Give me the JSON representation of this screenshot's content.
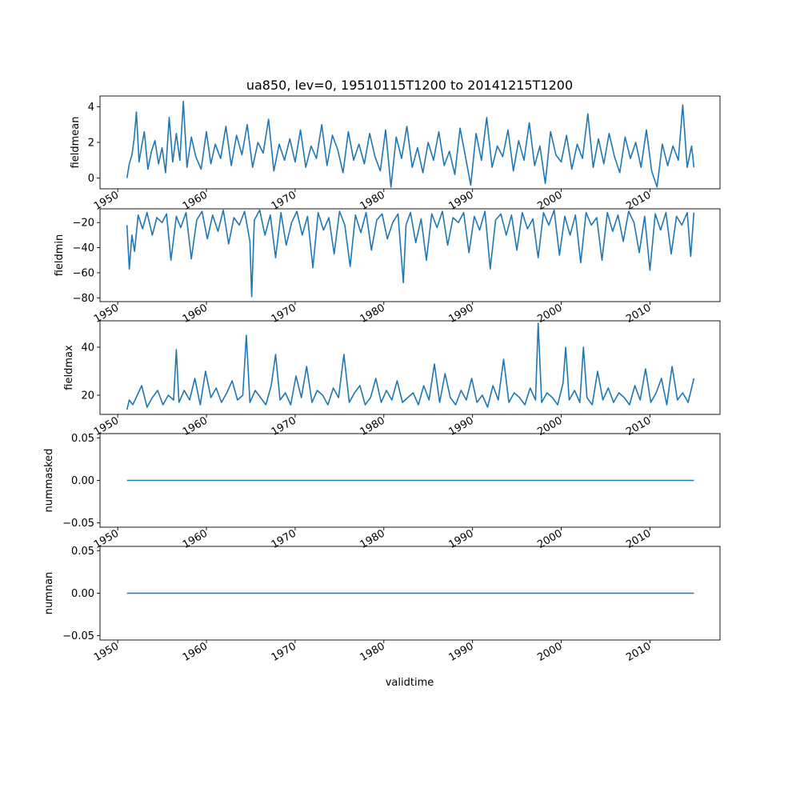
{
  "figure": {
    "title": "ua850, lev=0, 19510115T1200 to 20141215T1200",
    "xlabel": "validtime",
    "line_color": "#1f77b4"
  },
  "chart_data": [
    {
      "type": "line",
      "ylabel": "fieldmean",
      "xlim": [
        1948.0,
        2017.9
      ],
      "ylim": [
        -0.6,
        4.6
      ],
      "xticks": [
        1950,
        1960,
        1970,
        1980,
        1990,
        2000,
        2010
      ],
      "xtick_labels": [
        "1950",
        "1960",
        "1970",
        "1980",
        "1990",
        "2000",
        "2010"
      ],
      "yticks": [
        0,
        2,
        4
      ],
      "ytick_labels": [
        "0",
        "2",
        "4"
      ],
      "x": [
        1951.04,
        1951.3,
        1951.6,
        1951.85,
        1952.1,
        1952.4,
        1952.7,
        1953.0,
        1953.4,
        1953.8,
        1954.2,
        1954.6,
        1955.0,
        1955.4,
        1955.8,
        1956.2,
        1956.6,
        1957.0,
        1957.4,
        1957.8,
        1958.3,
        1958.8,
        1959.4,
        1960.0,
        1960.5,
        1961.0,
        1961.6,
        1962.2,
        1962.8,
        1963.4,
        1964.0,
        1964.6,
        1965.2,
        1965.8,
        1966.4,
        1967.0,
        1967.6,
        1968.2,
        1968.8,
        1969.4,
        1970.0,
        1970.6,
        1971.2,
        1971.8,
        1972.4,
        1973.0,
        1973.6,
        1974.2,
        1974.8,
        1975.4,
        1976.0,
        1976.6,
        1977.2,
        1977.8,
        1978.4,
        1979.0,
        1979.6,
        1980.2,
        1980.8,
        1981.4,
        1982.0,
        1982.6,
        1983.2,
        1983.8,
        1984.4,
        1985.0,
        1985.6,
        1986.2,
        1986.8,
        1987.4,
        1988.0,
        1988.6,
        1989.2,
        1989.8,
        1990.4,
        1991.0,
        1991.6,
        1992.2,
        1992.8,
        1993.4,
        1994.0,
        1994.6,
        1995.2,
        1995.8,
        1996.4,
        1997.0,
        1997.6,
        1998.2,
        1998.8,
        1999.4,
        2000.0,
        2000.6,
        2001.2,
        2001.8,
        2002.4,
        2003.0,
        2003.6,
        2004.2,
        2004.8,
        2005.4,
        2006.0,
        2006.6,
        2007.2,
        2007.8,
        2008.4,
        2009.0,
        2009.6,
        2010.2,
        2010.8,
        2011.4,
        2012.0,
        2012.6,
        2013.2,
        2013.7,
        2014.2,
        2014.7,
        2014.96
      ],
      "y": [
        0.0,
        0.8,
        1.3,
        2.2,
        3.7,
        0.9,
        1.8,
        2.6,
        0.5,
        1.5,
        2.1,
        0.8,
        1.7,
        0.3,
        3.4,
        0.9,
        2.5,
        1.0,
        4.3,
        0.6,
        2.3,
        1.2,
        0.5,
        2.6,
        0.8,
        1.9,
        1.1,
        2.9,
        0.7,
        2.4,
        1.3,
        3.0,
        0.6,
        2.0,
        1.4,
        3.3,
        0.4,
        1.9,
        1.0,
        2.2,
        0.9,
        2.7,
        0.6,
        1.8,
        1.1,
        3.0,
        0.7,
        2.4,
        1.6,
        0.3,
        2.6,
        1.0,
        1.9,
        0.8,
        2.5,
        1.2,
        0.4,
        2.7,
        -0.5,
        2.3,
        1.1,
        2.9,
        0.6,
        1.7,
        0.3,
        2.0,
        1.0,
        2.6,
        0.7,
        1.5,
        0.2,
        2.8,
        1.2,
        -0.4,
        2.5,
        1.0,
        3.4,
        0.6,
        1.8,
        1.2,
        2.7,
        0.4,
        2.1,
        1.0,
        3.1,
        0.7,
        1.8,
        -0.3,
        2.6,
        1.3,
        0.9,
        2.4,
        0.5,
        1.9,
        1.1,
        3.6,
        0.6,
        2.2,
        0.8,
        2.5,
        1.2,
        0.3,
        2.3,
        1.1,
        2.0,
        0.6,
        2.7,
        0.4,
        -0.5,
        1.9,
        0.7,
        1.8,
        1.0,
        4.1,
        0.6,
        1.8,
        0.6
      ]
    },
    {
      "type": "line",
      "ylabel": "fieldmin",
      "xlim": [
        1948.0,
        2017.9
      ],
      "ylim": [
        -83,
        -9
      ],
      "xticks": [
        1950,
        1960,
        1970,
        1980,
        1990,
        2000,
        2010
      ],
      "xtick_labels": [
        "1950",
        "1960",
        "1970",
        "1980",
        "1990",
        "2000",
        "2010"
      ],
      "yticks": [
        -80,
        -60,
        -40,
        -20
      ],
      "ytick_labels": [
        "−80",
        "−60",
        "−40",
        "−20"
      ],
      "x": [
        1951.04,
        1951.3,
        1951.6,
        1951.9,
        1952.3,
        1952.8,
        1953.3,
        1953.9,
        1954.4,
        1955.0,
        1955.5,
        1956.0,
        1956.6,
        1957.1,
        1957.7,
        1958.3,
        1958.9,
        1959.5,
        1960.1,
        1960.7,
        1961.3,
        1961.9,
        1962.5,
        1963.1,
        1963.7,
        1964.3,
        1964.9,
        1965.1,
        1965.4,
        1966.0,
        1966.6,
        1967.2,
        1967.8,
        1968.4,
        1969.0,
        1969.6,
        1970.2,
        1970.8,
        1971.4,
        1972.0,
        1972.6,
        1973.2,
        1973.8,
        1974.4,
        1975.0,
        1975.6,
        1976.2,
        1976.8,
        1977.4,
        1978.0,
        1978.6,
        1979.2,
        1979.8,
        1980.4,
        1981.0,
        1981.6,
        1982.2,
        1982.5,
        1983.0,
        1983.6,
        1984.2,
        1984.8,
        1985.4,
        1986.0,
        1986.6,
        1987.2,
        1987.8,
        1988.4,
        1989.0,
        1989.6,
        1990.2,
        1990.8,
        1991.4,
        1992.0,
        1992.6,
        1993.2,
        1993.8,
        1994.4,
        1995.0,
        1995.6,
        1996.2,
        1996.8,
        1997.4,
        1998.0,
        1998.6,
        1999.2,
        1999.8,
        2000.4,
        2001.0,
        2001.6,
        2002.2,
        2002.8,
        2003.4,
        2004.0,
        2004.6,
        2005.2,
        2005.8,
        2006.4,
        2007.0,
        2007.6,
        2008.2,
        2008.8,
        2009.4,
        2010.0,
        2010.6,
        2011.2,
        2011.8,
        2012.4,
        2013.0,
        2013.6,
        2014.2,
        2014.6,
        2014.96
      ],
      "y": [
        -22,
        -57,
        -30,
        -43,
        -14,
        -25,
        -12,
        -30,
        -16,
        -20,
        -13,
        -50,
        -15,
        -24,
        -12,
        -49,
        -18,
        -11,
        -33,
        -14,
        -27,
        -10,
        -37,
        -16,
        -22,
        -11,
        -35,
        -79,
        -18,
        -10,
        -30,
        -14,
        -48,
        -12,
        -38,
        -20,
        -11,
        -30,
        -15,
        -56,
        -12,
        -26,
        -16,
        -45,
        -11,
        -22,
        -55,
        -14,
        -28,
        -12,
        -42,
        -18,
        -13,
        -33,
        -20,
        -13,
        -68,
        -22,
        -12,
        -36,
        -17,
        -50,
        -13,
        -24,
        -11,
        -38,
        -16,
        -20,
        -12,
        -44,
        -15,
        -26,
        -11,
        -57,
        -18,
        -13,
        -30,
        -14,
        -42,
        -12,
        -25,
        -17,
        -48,
        -12,
        -22,
        -10,
        -46,
        -15,
        -30,
        -14,
        -52,
        -12,
        -22,
        -16,
        -50,
        -12,
        -27,
        -14,
        -35,
        -11,
        -20,
        -44,
        -15,
        -58,
        -13,
        -26,
        -12,
        -45,
        -15,
        -22,
        -12,
        -47,
        -12
      ]
    },
    {
      "type": "line",
      "ylabel": "fieldmax",
      "xlim": [
        1948.0,
        2017.9
      ],
      "ylim": [
        12,
        51
      ],
      "xticks": [
        1950,
        1960,
        1970,
        1980,
        1990,
        2000,
        2010
      ],
      "xtick_labels": [
        "1950",
        "1960",
        "1970",
        "1980",
        "1990",
        "2000",
        "2010"
      ],
      "yticks": [
        20,
        40
      ],
      "ytick_labels": [
        "20",
        "40"
      ],
      "x": [
        1951.04,
        1951.3,
        1951.7,
        1952.2,
        1952.7,
        1953.3,
        1953.9,
        1954.5,
        1955.1,
        1955.7,
        1956.3,
        1956.6,
        1956.9,
        1957.5,
        1958.1,
        1958.7,
        1959.3,
        1959.9,
        1960.5,
        1961.1,
        1961.7,
        1962.3,
        1962.9,
        1963.5,
        1964.1,
        1964.5,
        1964.9,
        1965.5,
        1966.1,
        1966.7,
        1967.3,
        1967.8,
        1968.3,
        1968.9,
        1969.5,
        1970.1,
        1970.7,
        1971.3,
        1971.9,
        1972.5,
        1973.1,
        1973.7,
        1974.3,
        1974.9,
        1975.5,
        1976.1,
        1976.7,
        1977.3,
        1977.9,
        1978.5,
        1979.1,
        1979.7,
        1980.3,
        1980.9,
        1981.5,
        1982.1,
        1982.7,
        1983.3,
        1983.9,
        1984.5,
        1985.1,
        1985.7,
        1986.3,
        1986.9,
        1987.5,
        1988.1,
        1988.7,
        1989.3,
        1989.9,
        1990.5,
        1991.1,
        1991.7,
        1992.3,
        1992.9,
        1993.5,
        1994.1,
        1994.7,
        1995.3,
        1995.9,
        1996.5,
        1997.1,
        1997.4,
        1997.8,
        1998.4,
        1999.0,
        1999.6,
        2000.2,
        2000.5,
        2000.9,
        2001.5,
        2002.1,
        2002.5,
        2002.9,
        2003.5,
        2004.1,
        2004.7,
        2005.3,
        2005.9,
        2006.5,
        2007.1,
        2007.7,
        2008.3,
        2008.9,
        2009.5,
        2010.1,
        2010.7,
        2011.3,
        2011.9,
        2012.5,
        2013.1,
        2013.7,
        2014.3,
        2014.96
      ],
      "y": [
        14,
        18,
        16,
        20,
        24,
        15,
        19,
        22,
        16,
        20,
        18,
        39,
        17,
        22,
        18,
        27,
        16,
        30,
        19,
        23,
        17,
        21,
        26,
        18,
        20,
        45,
        17,
        22,
        19,
        16,
        24,
        37,
        18,
        21,
        16,
        28,
        19,
        32,
        17,
        22,
        20,
        16,
        23,
        19,
        37,
        17,
        21,
        24,
        16,
        19,
        27,
        17,
        22,
        18,
        26,
        17,
        19,
        21,
        16,
        24,
        18,
        33,
        17,
        29,
        19,
        16,
        22,
        18,
        27,
        17,
        20,
        15,
        24,
        18,
        35,
        17,
        21,
        19,
        16,
        23,
        18,
        50,
        17,
        21,
        19,
        16,
        25,
        40,
        18,
        22,
        17,
        40,
        19,
        16,
        30,
        18,
        23,
        17,
        21,
        19,
        16,
        24,
        18,
        31,
        17,
        21,
        27,
        16,
        32,
        18,
        21,
        17,
        27
      ]
    },
    {
      "type": "line",
      "ylabel": "nummasked",
      "xlim": [
        1948.0,
        2017.9
      ],
      "ylim": [
        -0.055,
        0.055
      ],
      "xticks": [
        1950,
        1960,
        1970,
        1980,
        1990,
        2000,
        2010
      ],
      "xtick_labels": [
        "1950",
        "1960",
        "1970",
        "1980",
        "1990",
        "2000",
        "2010"
      ],
      "yticks": [
        -0.05,
        0.0,
        0.05
      ],
      "ytick_labels": [
        "−0.05",
        "0.00",
        "0.05"
      ],
      "x": [
        1951.04,
        2014.96
      ],
      "y": [
        0.0,
        0.0
      ]
    },
    {
      "type": "line",
      "ylabel": "numnan",
      "xlim": [
        1948.0,
        2017.9
      ],
      "ylim": [
        -0.055,
        0.055
      ],
      "xticks": [
        1950,
        1960,
        1970,
        1980,
        1990,
        2000,
        2010
      ],
      "xtick_labels": [
        "1950",
        "1960",
        "1970",
        "1980",
        "1990",
        "2000",
        "2010"
      ],
      "yticks": [
        -0.05,
        0.0,
        0.05
      ],
      "ytick_labels": [
        "−0.05",
        "0.00",
        "0.05"
      ],
      "x": [
        1951.04,
        2014.96
      ],
      "y": [
        0.0,
        0.0
      ]
    }
  ]
}
